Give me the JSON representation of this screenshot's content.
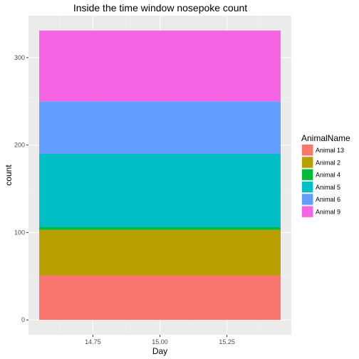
{
  "chart_data": {
    "type": "bar",
    "stacked": true,
    "title": "Inside the time window nosepoke count",
    "xlabel": "Day",
    "ylabel": "count",
    "x": 15.0,
    "bar_range": [
      14.55,
      15.45
    ],
    "xlim": [
      14.51,
      15.49
    ],
    "ylim": [
      -17,
      348
    ],
    "x_ticks": [
      {
        "value": 14.75,
        "label": "14.75"
      },
      {
        "value": 15.0,
        "label": "15.00"
      },
      {
        "value": 15.25,
        "label": "15.25"
      }
    ],
    "y_ticks": [
      {
        "value": 0,
        "label": "0"
      },
      {
        "value": 100,
        "label": "100"
      },
      {
        "value": 200,
        "label": "200"
      },
      {
        "value": 300,
        "label": "300"
      }
    ],
    "grid": true,
    "legend": {
      "title": "AnimalName",
      "position": "right"
    },
    "series": [
      {
        "name": "Animal 13",
        "value": 51,
        "color": "#F8766D"
      },
      {
        "name": "Animal 2",
        "value": 52,
        "color": "#B79F00"
      },
      {
        "name": "Animal 4",
        "value": 3,
        "color": "#00BA38"
      },
      {
        "name": "Animal 5",
        "value": 84,
        "color": "#00BFC4"
      },
      {
        "name": "Animal 6",
        "value": 60,
        "color": "#619CFF"
      },
      {
        "name": "Animal 9",
        "value": 81,
        "color": "#F564E3"
      }
    ]
  }
}
